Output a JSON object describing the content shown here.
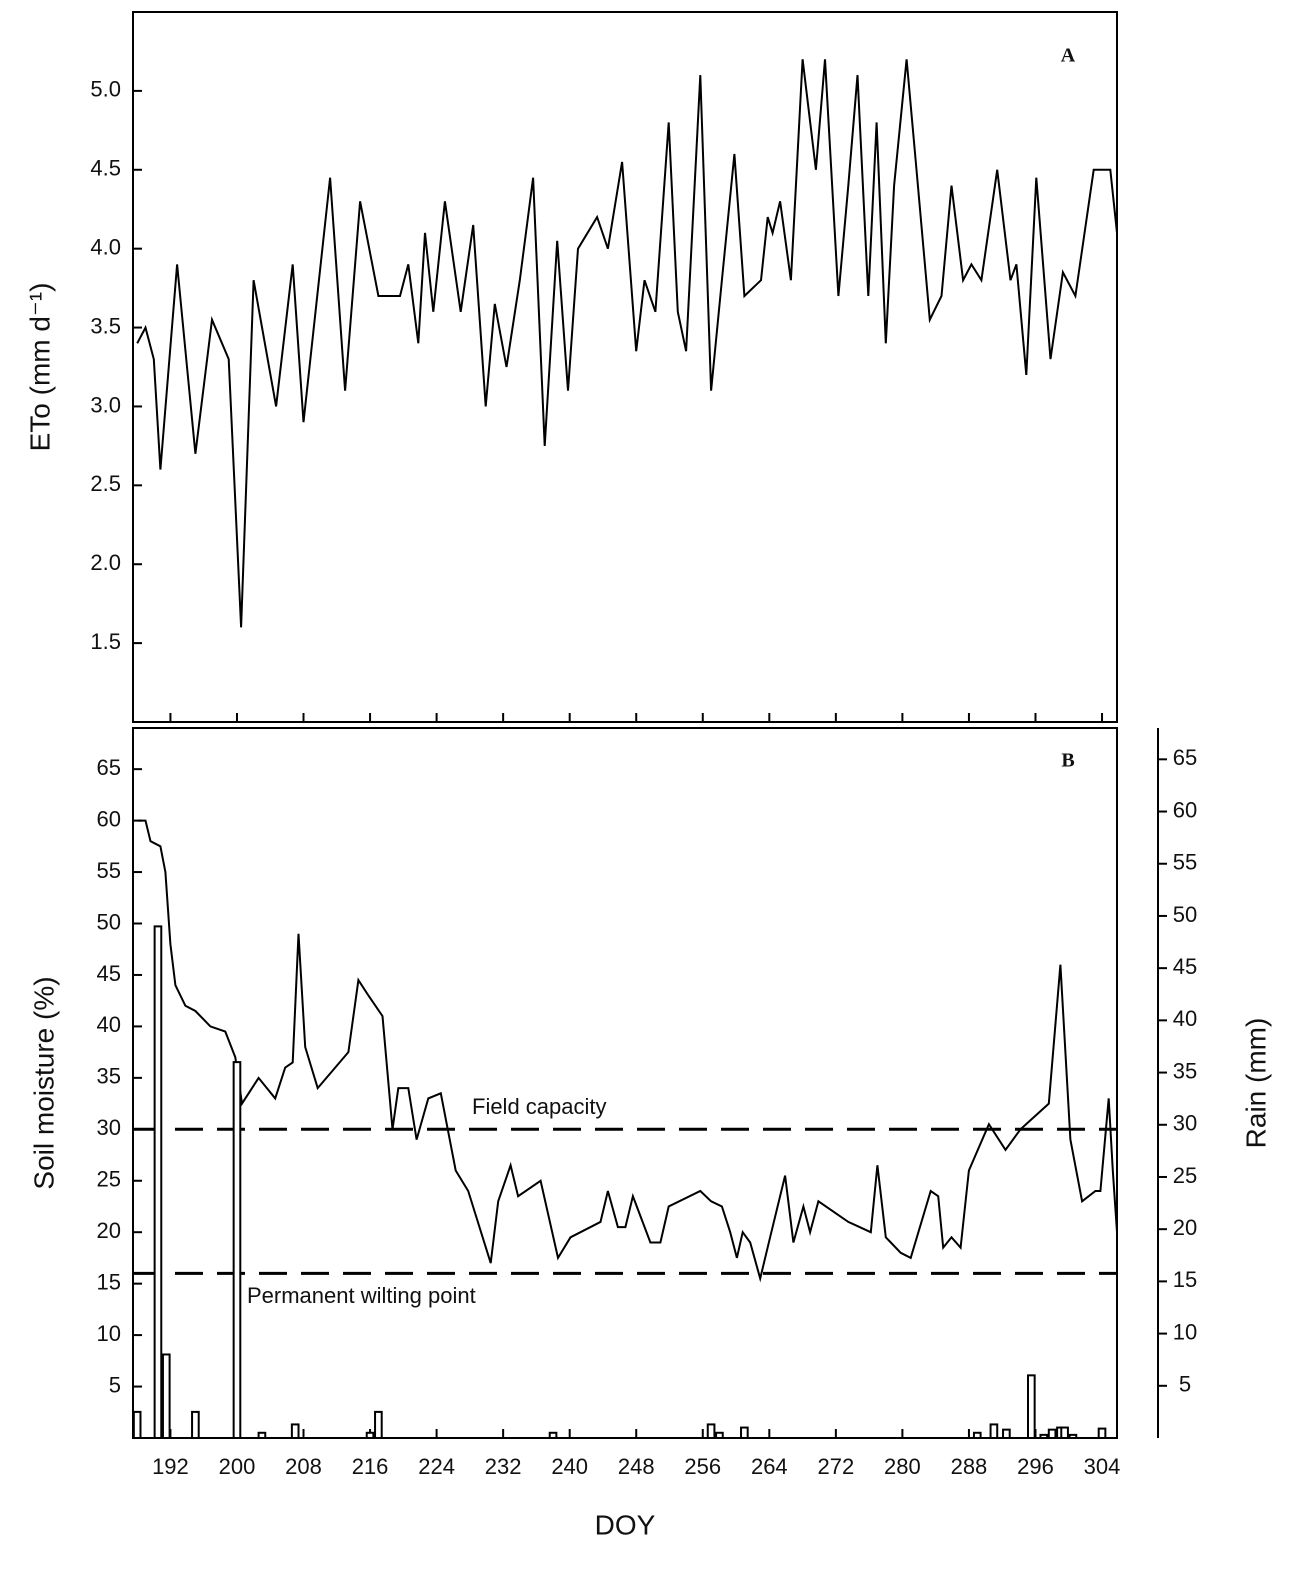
{
  "chart_data": [
    {
      "type": "line",
      "label": "A",
      "ylabel": "ETo (mm d⁻¹)",
      "color": "#000000",
      "xlim": [
        187.5,
        305.8
      ],
      "xticks": [
        192,
        200,
        208,
        216,
        224,
        232,
        240,
        248,
        256,
        264,
        272,
        280,
        288,
        296,
        304
      ],
      "ylim": [
        1.0,
        5.5
      ],
      "yticks": [
        1.5,
        {
          "value": 2,
          "label": "2.0"
        },
        2.5,
        {
          "value": 3,
          "label": "3.0"
        },
        3.5,
        {
          "value": 4,
          "label": "4.0"
        },
        4.5,
        {
          "value": 5,
          "label": "5.0"
        }
      ],
      "x": [
        188,
        189,
        190,
        190.8,
        192.8,
        195,
        197,
        199,
        200.5,
        202,
        204.7,
        206.7,
        208,
        211.2,
        213,
        214.8,
        217,
        219.6,
        220.6,
        221.8,
        222.6,
        223.6,
        225,
        226.9,
        228.4,
        229.9,
        231,
        232.4,
        234,
        235.6,
        237,
        238.5,
        239.8,
        241,
        243.3,
        244.6,
        246.3,
        248,
        249,
        250.3,
        251.9,
        253,
        254,
        255.7,
        257,
        258.3,
        259.8,
        261,
        263,
        263.8,
        264.4,
        265.3,
        266.6,
        268,
        269.6,
        270.7,
        272.3,
        273.5,
        274.6,
        275.9,
        276.9,
        278,
        279,
        280.5,
        281.7,
        283.3,
        284.7,
        285.9,
        287.3,
        288.3,
        289.5,
        291.4,
        293,
        293.7,
        294.9,
        296.1,
        297.8,
        299.3,
        300.8,
        303,
        305,
        305.8
      ],
      "values": [
        3.4,
        3.5,
        3.3,
        2.6,
        3.9,
        2.7,
        3.55,
        3.3,
        1.6,
        3.8,
        3.0,
        3.9,
        2.9,
        4.45,
        3.1,
        4.3,
        3.7,
        3.7,
        3.9,
        3.4,
        4.1,
        3.6,
        4.3,
        3.6,
        4.15,
        3.0,
        3.65,
        3.25,
        3.8,
        4.45,
        2.75,
        4.05,
        3.1,
        4.0,
        4.2,
        4.0,
        4.55,
        3.35,
        3.8,
        3.6,
        4.8,
        3.6,
        3.35,
        5.1,
        3.1,
        3.8,
        4.6,
        3.7,
        3.8,
        4.2,
        4.1,
        4.3,
        3.8,
        5.2,
        4.5,
        5.2,
        3.7,
        4.4,
        5.1,
        3.7,
        4.8,
        3.4,
        4.4,
        5.2,
        4.5,
        3.55,
        3.7,
        4.4,
        3.8,
        3.9,
        3.8,
        4.5,
        3.8,
        3.9,
        3.2,
        4.45,
        3.3,
        3.85,
        3.7,
        4.5,
        4.5,
        4.1
      ]
    },
    {
      "type": "line",
      "label": "B",
      "ylabel": "Soil moisture (%)",
      "y2label": "Rain (mm)",
      "xlabel": "DOY",
      "xlim": [
        187.5,
        305.8
      ],
      "xticks": [
        192,
        200,
        208,
        216,
        224,
        232,
        240,
        248,
        256,
        264,
        272,
        280,
        288,
        296,
        304
      ],
      "ylim": [
        0,
        69
      ],
      "yticks": [
        5,
        10,
        15,
        20,
        25,
        30,
        35,
        40,
        45,
        50,
        55,
        60,
        65
      ],
      "y2lim": [
        0,
        68
      ],
      "y2ticks": [
        5,
        10,
        15,
        20,
        25,
        30,
        35,
        40,
        45,
        50,
        55,
        60,
        65
      ],
      "hlines": [
        {
          "value": 30,
          "label": "Field capacity"
        },
        {
          "value": 16,
          "label": "Permanent wilting point"
        }
      ],
      "series": [
        {
          "color": "#000000",
          "x": [
            188,
            189,
            189.6,
            190.8,
            191.4,
            192,
            192.6,
            193.8,
            195,
            196.8,
            198.6,
            199.8,
            200.6,
            202.6,
            204.6,
            205.8,
            206.7,
            207.4,
            208.2,
            209.7,
            213.4,
            214.6,
            215.8,
            217.5,
            218.7,
            219.4,
            220.6,
            221.6,
            223,
            224.5,
            226.3,
            227.8,
            230.5,
            231.4,
            232.9,
            233.8,
            236.5,
            238.6,
            240.1,
            243.7,
            244.6,
            245.8,
            246.7,
            247.6,
            249.7,
            250.9,
            251.9,
            255.7,
            257,
            258.3,
            259.3,
            260.1,
            260.8,
            261.7,
            262.9,
            264.1,
            265.9,
            266.9,
            268.1,
            268.9,
            269.9,
            273.5,
            276.2,
            277,
            278,
            279.8,
            281,
            283.4,
            284.3,
            284.9,
            285.9,
            287,
            288,
            290.4,
            292.4,
            294.2,
            297.6,
            299,
            300.2,
            301.6,
            303.2,
            303.8,
            304.8,
            305.3,
            305.8
          ],
          "values": [
            60,
            60,
            58,
            57.5,
            55,
            48,
            44,
            42,
            41.5,
            40,
            39.5,
            37,
            32.5,
            35,
            33,
            36,
            36.5,
            49,
            38,
            34,
            37.5,
            44.5,
            43,
            41,
            30,
            34,
            34,
            29,
            33,
            33.5,
            26,
            24,
            17,
            23,
            26.5,
            23.5,
            25,
            17.5,
            19.5,
            21,
            24,
            20.5,
            20.5,
            23.5,
            19,
            19,
            22.5,
            24,
            23,
            22.5,
            20,
            17.5,
            20,
            19,
            15.5,
            19.5,
            25.5,
            19,
            22.5,
            20,
            23,
            21,
            20,
            26.5,
            19.5,
            18,
            17.5,
            24,
            23.5,
            18.5,
            19.5,
            18.5,
            26,
            30.5,
            28,
            30,
            32.5,
            46,
            29,
            23,
            24,
            24,
            33,
            26,
            20
          ]
        },
        {
          "type": "bar",
          "axis": "y2",
          "color": "#000000",
          "x": [
            188,
            190.5,
            191.5,
            195,
            200,
            203,
            207,
            216,
            217,
            238,
            257,
            258,
            261,
            289,
            291,
            292.5,
            295.5,
            297,
            298,
            299,
            299.5,
            300.5,
            304
          ],
          "values": [
            2.5,
            49,
            8,
            2.5,
            36,
            0.5,
            1.3,
            0.5,
            2.5,
            0.5,
            1.3,
            0.5,
            1,
            0.5,
            1.3,
            0.8,
            6,
            0.3,
            0.8,
            1,
            1,
            0.3,
            0.9
          ]
        }
      ]
    }
  ]
}
